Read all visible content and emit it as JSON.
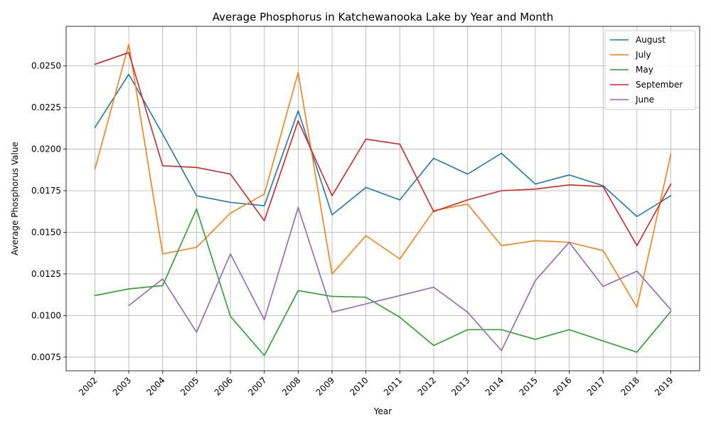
{
  "chart_data": {
    "type": "line",
    "title": "Average Phosphorus in Katchewanooka Lake by Year and Month",
    "xlabel": "Year",
    "ylabel": "Average Phosphorus Value",
    "x": [
      2002,
      2003,
      2004,
      2005,
      2006,
      2007,
      2008,
      2009,
      2010,
      2011,
      2012,
      2013,
      2014,
      2015,
      2016,
      2017,
      2018,
      2019
    ],
    "x_tick_labels": [
      "2002",
      "2003",
      "2004",
      "2005",
      "2006",
      "2007",
      "2008",
      "2009",
      "2010",
      "2011",
      "2012",
      "2013",
      "2014",
      "2015",
      "2016",
      "2017",
      "2018",
      "2019"
    ],
    "y_ticks": [
      0.0075,
      0.01,
      0.0125,
      0.015,
      0.0175,
      0.02,
      0.0225,
      0.025
    ],
    "y_tick_labels": [
      "0.0075",
      "0.0100",
      "0.0125",
      "0.0150",
      "0.0175",
      "0.0200",
      "0.0225",
      "0.0250"
    ],
    "xlim": [
      2001.15,
      2019.85
    ],
    "ylim": [
      0.00668,
      0.02738
    ],
    "grid": true,
    "legend_position": "top-right",
    "series": [
      {
        "name": "August",
        "color": "#1f77b4",
        "values": [
          0.0213,
          0.0245,
          0.0209,
          0.0172,
          0.0168,
          0.0166,
          0.0223,
          0.01605,
          0.0177,
          0.01695,
          0.01945,
          0.0185,
          0.01975,
          0.0179,
          0.01845,
          0.0178,
          0.01595,
          0.0172
        ]
      },
      {
        "name": "July",
        "color": "#ff7f0e",
        "values": [
          0.0188,
          0.0263,
          0.0137,
          0.0141,
          0.01615,
          0.0173,
          0.0246,
          0.0125,
          0.0148,
          0.0134,
          0.0163,
          0.0167,
          0.0142,
          0.0145,
          0.0144,
          0.0139,
          0.0105,
          0.0197
        ]
      },
      {
        "name": "May",
        "color": "#2ca02c",
        "values": [
          0.0112,
          0.0116,
          0.0118,
          0.0164,
          0.00995,
          0.0076,
          0.0115,
          0.01115,
          0.0111,
          0.0099,
          0.0082,
          0.00915,
          0.00915,
          0.00857,
          0.00915,
          0.00847,
          0.0078,
          0.01025
        ]
      },
      {
        "name": "September",
        "color": "#d62728",
        "values": [
          0.0251,
          0.0258,
          0.019,
          0.0189,
          0.0185,
          0.0157,
          0.0217,
          0.0172,
          0.0206,
          0.0203,
          0.01625,
          0.01695,
          0.0175,
          0.0176,
          0.01785,
          0.01775,
          0.0142,
          0.0179
        ]
      },
      {
        "name": "June",
        "color": "#9467bd",
        "values": [
          null,
          0.0106,
          0.0122,
          0.009,
          0.0137,
          0.00975,
          0.0165,
          0.0102,
          0.0107,
          0.0112,
          0.0117,
          0.0102,
          0.0079,
          0.0121,
          0.0144,
          0.01175,
          0.01267,
          0.01035
        ]
      }
    ]
  }
}
